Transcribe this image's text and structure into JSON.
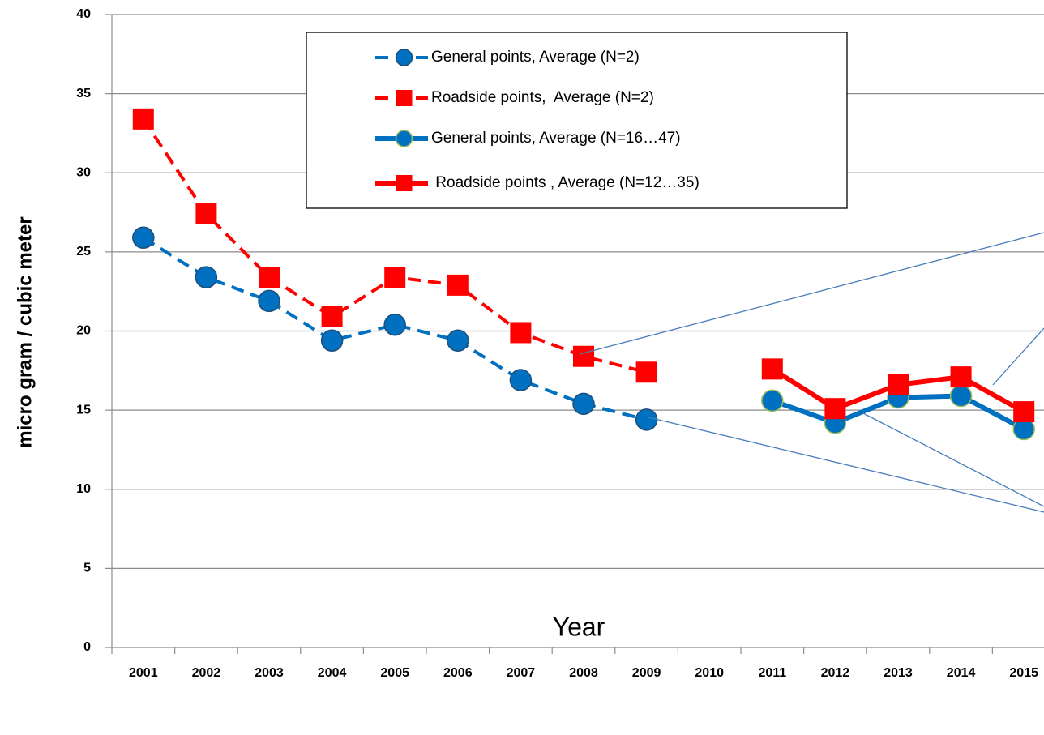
{
  "chart_data": {
    "type": "line",
    "x_label": "Year",
    "y_label": "micro gram / cubic meter",
    "categories": [
      "2001",
      "2002",
      "2003",
      "2004",
      "2005",
      "2006",
      "2007",
      "2008",
      "2009",
      "2010",
      "2011",
      "2012",
      "2013",
      "2014",
      "2015"
    ],
    "series": [
      {
        "name": "General points, Average (N=2)",
        "color": "#0070c0",
        "line_style": "dashed",
        "marker": "circle",
        "values": [
          25.9,
          23.4,
          21.9,
          19.4,
          20.4,
          19.4,
          16.9,
          15.4,
          14.4,
          null,
          null,
          null,
          null,
          null,
          null
        ]
      },
      {
        "name": "Roadside points,  Average (N=2)",
        "color": "#ff0000",
        "line_style": "dashed",
        "marker": "square",
        "values": [
          33.4,
          27.4,
          23.4,
          20.9,
          23.4,
          22.9,
          19.9,
          18.4,
          17.4,
          null,
          null,
          null,
          null,
          null,
          null
        ]
      },
      {
        "name": "General points, Average (N=16…47)",
        "color": "#0070c0",
        "line_style": "solid",
        "marker": "circle",
        "values": [
          null,
          null,
          null,
          null,
          null,
          null,
          null,
          null,
          null,
          null,
          15.6,
          14.2,
          15.8,
          15.9,
          13.8
        ]
      },
      {
        "name": " Roadside points , Average (N=12…35)",
        "color": "#ff0000",
        "line_style": "solid",
        "marker": "square",
        "values": [
          null,
          null,
          null,
          null,
          null,
          null,
          null,
          null,
          null,
          null,
          17.6,
          15.1,
          16.6,
          17.1,
          14.9
        ]
      }
    ],
    "ylim": [
      0,
      40
    ],
    "yticks": [
      0,
      5,
      10,
      15,
      20,
      25,
      30,
      35,
      40
    ],
    "grid": true
  }
}
